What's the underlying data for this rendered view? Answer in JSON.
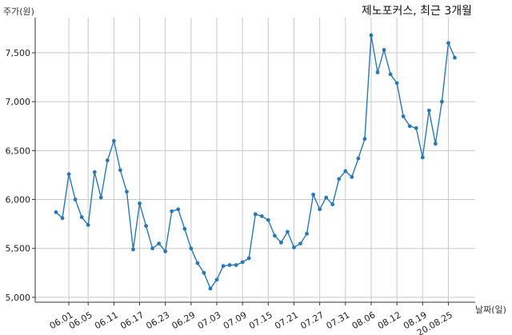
{
  "chart_data": {
    "type": "line",
    "title": "제노포커스, 최근 3개월",
    "xlabel": "날짜(일)",
    "ylabel": "주가(원)",
    "ylim": [
      4950,
      7860
    ],
    "y_ticks": [
      5000,
      5500,
      6000,
      6500,
      7000,
      7500
    ],
    "y_tick_labels": [
      "5,000",
      "5,500",
      "6,000",
      "6,500",
      "7,000",
      "7,500"
    ],
    "x_tick_labels": [
      "06.01",
      "06.05",
      "06.11",
      "06.17",
      "06.23",
      "06.29",
      "07.03",
      "07.09",
      "07.15",
      "07.21",
      "07.27",
      "07.31",
      "08.06",
      "08.12",
      "08.19",
      "20.08.25"
    ],
    "x_tick_indices": [
      2,
      5,
      9,
      13,
      17,
      21,
      25,
      29,
      33,
      37,
      41,
      45,
      49,
      53,
      57,
      61
    ],
    "grid": true,
    "line_color": "#2878b5",
    "series": [
      {
        "values": [
          5870,
          5810,
          6260,
          6000,
          5820,
          5740,
          6280,
          6020,
          6400,
          6600,
          6300,
          6080,
          5490,
          5960,
          5730,
          5500,
          5550,
          5470,
          5880,
          5900,
          5700,
          5500,
          5350,
          5250,
          5090,
          5180,
          5320,
          5330,
          5330,
          5360,
          5400,
          5850,
          5830,
          5790,
          5630,
          5560,
          5670,
          5510,
          5550,
          5650,
          6050,
          5900,
          6020,
          5950,
          6210,
          6290,
          6230,
          6420,
          6620,
          7680,
          7300,
          7530,
          7280,
          7190,
          6850,
          6750,
          6730,
          6430,
          6910,
          6570,
          7000,
          7600,
          7450
        ]
      }
    ]
  }
}
